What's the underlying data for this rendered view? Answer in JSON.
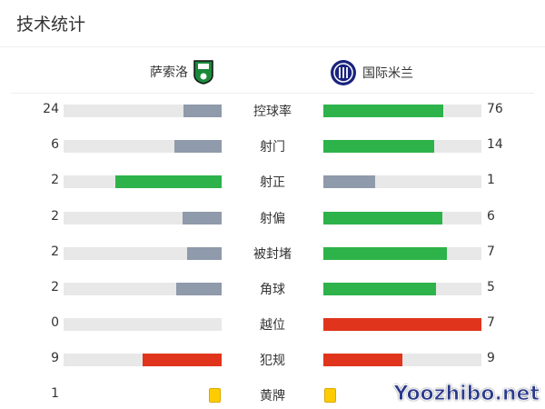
{
  "title": "技术统计",
  "home": {
    "name": "萨索洛"
  },
  "away": {
    "name": "国际米兰"
  },
  "colors": {
    "green": "#2db34a",
    "gray": "#8f9aab",
    "red": "#e0341c",
    "yellow": "#ffcc00"
  },
  "stats": [
    {
      "label": "控球率",
      "home": "24",
      "away": "76",
      "home_frac": 0.24,
      "away_frac": 0.76,
      "home_color": "gray",
      "away_color": "green"
    },
    {
      "label": "射门",
      "home": "6",
      "away": "14",
      "home_frac": 0.3,
      "away_frac": 0.7,
      "home_color": "gray",
      "away_color": "green"
    },
    {
      "label": "射正",
      "home": "2",
      "away": "1",
      "home_frac": 0.67,
      "away_frac": 0.33,
      "home_color": "green",
      "away_color": "gray"
    },
    {
      "label": "射偏",
      "home": "2",
      "away": "6",
      "home_frac": 0.25,
      "away_frac": 0.75,
      "home_color": "gray",
      "away_color": "green"
    },
    {
      "label": "被封堵",
      "home": "2",
      "away": "7",
      "home_frac": 0.22,
      "away_frac": 0.78,
      "home_color": "gray",
      "away_color": "green"
    },
    {
      "label": "角球",
      "home": "2",
      "away": "5",
      "home_frac": 0.29,
      "away_frac": 0.71,
      "home_color": "gray",
      "away_color": "green"
    },
    {
      "label": "越位",
      "home": "0",
      "away": "7",
      "home_frac": 0,
      "away_frac": 1,
      "home_color": "red",
      "away_color": "red"
    },
    {
      "label": "犯规",
      "home": "9",
      "away": "9",
      "home_frac": 0.5,
      "away_frac": 0.5,
      "home_color": "red",
      "away_color": "red"
    }
  ],
  "yellow": {
    "label": "黄牌",
    "home": "1"
  },
  "watermark": "Yoozhibo.net"
}
